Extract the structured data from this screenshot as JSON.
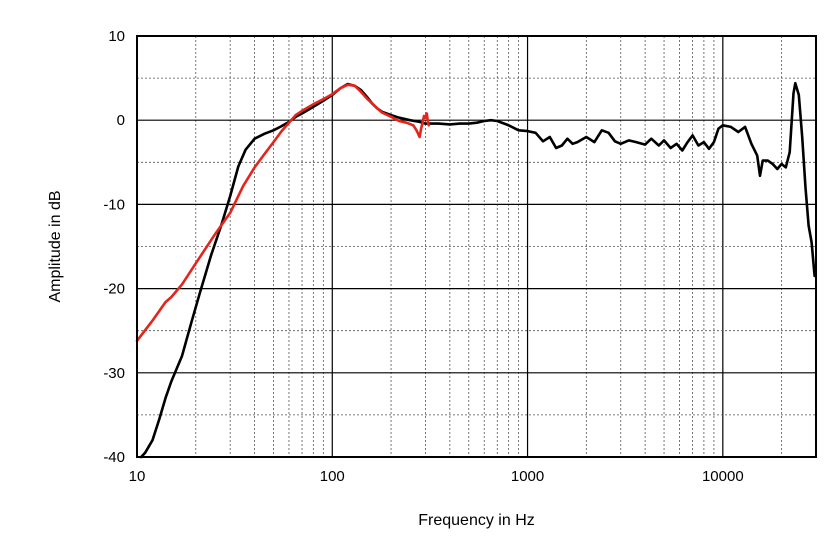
{
  "chart_data": {
    "type": "line",
    "title": "",
    "xlabel": "Frequency in Hz",
    "ylabel": "Amplitude in dB",
    "x_scale": "log",
    "xlim": [
      10,
      30000
    ],
    "ylim": [
      -40,
      10
    ],
    "x_ticks": [
      10,
      100,
      1000,
      10000
    ],
    "x_tick_labels": [
      "10",
      "100",
      "1000",
      "10000"
    ],
    "y_ticks": [
      10,
      0,
      -10,
      -20,
      -30,
      -40
    ],
    "y_tick_labels": [
      "10",
      "0",
      "-10",
      "-20",
      "-30",
      "-40"
    ],
    "grid": true,
    "legend": "none",
    "series": [
      {
        "color": "#000000",
        "points": [
          [
            10.5,
            -40
          ],
          [
            11,
            -39.5
          ],
          [
            12,
            -38
          ],
          [
            13,
            -35.5
          ],
          [
            14,
            -33
          ],
          [
            15,
            -31
          ],
          [
            17,
            -28
          ],
          [
            19,
            -24
          ],
          [
            21,
            -20.5
          ],
          [
            24,
            -16
          ],
          [
            27,
            -12.5
          ],
          [
            30,
            -9
          ],
          [
            33,
            -5.5
          ],
          [
            36,
            -3.5
          ],
          [
            40,
            -2.2
          ],
          [
            45,
            -1.6
          ],
          [
            50,
            -1.2
          ],
          [
            55,
            -0.7
          ],
          [
            60,
            -0.2
          ],
          [
            65,
            0.4
          ],
          [
            70,
            0.8
          ],
          [
            80,
            1.6
          ],
          [
            90,
            2.3
          ],
          [
            100,
            3.0
          ],
          [
            110,
            3.8
          ],
          [
            120,
            4.3
          ],
          [
            130,
            4.1
          ],
          [
            140,
            3.6
          ],
          [
            150,
            2.8
          ],
          [
            160,
            2.0
          ],
          [
            170,
            1.4
          ],
          [
            180,
            1.0
          ],
          [
            200,
            0.6
          ],
          [
            220,
            0.3
          ],
          [
            250,
            0
          ],
          [
            280,
            -0.2
          ],
          [
            300,
            -0.4
          ],
          [
            350,
            -0.4
          ],
          [
            400,
            -0.5
          ],
          [
            450,
            -0.4
          ],
          [
            500,
            -0.4
          ],
          [
            550,
            -0.3
          ],
          [
            600,
            -0.1
          ],
          [
            650,
            0
          ],
          [
            700,
            -0.1
          ],
          [
            800,
            -0.6
          ],
          [
            900,
            -1.2
          ],
          [
            1000,
            -1.3
          ],
          [
            1100,
            -1.5
          ],
          [
            1200,
            -2.5
          ],
          [
            1300,
            -2.0
          ],
          [
            1400,
            -3.3
          ],
          [
            1500,
            -3.0
          ],
          [
            1600,
            -2.2
          ],
          [
            1700,
            -2.8
          ],
          [
            1800,
            -2.6
          ],
          [
            2000,
            -2.0
          ],
          [
            2200,
            -2.6
          ],
          [
            2400,
            -1.2
          ],
          [
            2600,
            -1.5
          ],
          [
            2800,
            -2.5
          ],
          [
            3000,
            -2.8
          ],
          [
            3300,
            -2.4
          ],
          [
            3600,
            -2.6
          ],
          [
            4000,
            -2.9
          ],
          [
            4300,
            -2.2
          ],
          [
            4700,
            -3.0
          ],
          [
            5000,
            -2.4
          ],
          [
            5400,
            -3.3
          ],
          [
            5800,
            -2.8
          ],
          [
            6200,
            -3.6
          ],
          [
            6600,
            -2.6
          ],
          [
            7000,
            -1.8
          ],
          [
            7500,
            -3.0
          ],
          [
            8000,
            -2.6
          ],
          [
            8500,
            -3.4
          ],
          [
            9000,
            -2.6
          ],
          [
            9500,
            -1.0
          ],
          [
            10000,
            -0.6
          ],
          [
            11000,
            -0.8
          ],
          [
            12000,
            -1.4
          ],
          [
            13000,
            -0.8
          ],
          [
            14000,
            -2.8
          ],
          [
            15000,
            -4.2
          ],
          [
            15500,
            -6.6
          ],
          [
            16000,
            -4.8
          ],
          [
            17000,
            -4.8
          ],
          [
            18000,
            -5.2
          ],
          [
            19000,
            -5.8
          ],
          [
            20000,
            -5.2
          ],
          [
            21000,
            -5.6
          ],
          [
            22000,
            -3.8
          ],
          [
            23000,
            3.2
          ],
          [
            23500,
            4.4
          ],
          [
            24500,
            3.0
          ],
          [
            25500,
            -2.0
          ],
          [
            26500,
            -8.0
          ],
          [
            27500,
            -12.5
          ],
          [
            28500,
            -14.5
          ],
          [
            29500,
            -18.5
          ]
        ]
      },
      {
        "color": "#e5241c",
        "points": [
          [
            10,
            -26.2
          ],
          [
            12,
            -23.8
          ],
          [
            14,
            -21.6
          ],
          [
            15,
            -21.0
          ],
          [
            17,
            -19.5
          ],
          [
            20,
            -17.0
          ],
          [
            25,
            -13.6
          ],
          [
            30,
            -11.0
          ],
          [
            35,
            -7.8
          ],
          [
            40,
            -5.6
          ],
          [
            45,
            -4.0
          ],
          [
            50,
            -2.6
          ],
          [
            55,
            -1.3
          ],
          [
            60,
            -0.3
          ],
          [
            65,
            0.6
          ],
          [
            70,
            1.1
          ],
          [
            80,
            1.9
          ],
          [
            90,
            2.5
          ],
          [
            100,
            3.1
          ],
          [
            110,
            3.8
          ],
          [
            120,
            4.2
          ],
          [
            130,
            4.1
          ],
          [
            140,
            3.4
          ],
          [
            150,
            2.6
          ],
          [
            160,
            2.0
          ],
          [
            170,
            1.4
          ],
          [
            180,
            0.9
          ],
          [
            200,
            0.4
          ],
          [
            220,
            -0.1
          ],
          [
            240,
            -0.3
          ],
          [
            260,
            -0.6
          ],
          [
            270,
            -1.2
          ],
          [
            280,
            -2.0
          ],
          [
            285,
            -1.0
          ],
          [
            290,
            -0.3
          ],
          [
            295,
            0.5
          ],
          [
            300,
            0.3
          ],
          [
            305,
            0.8
          ],
          [
            310,
            -0.4
          ],
          [
            312,
            -0.6
          ]
        ]
      }
    ]
  }
}
